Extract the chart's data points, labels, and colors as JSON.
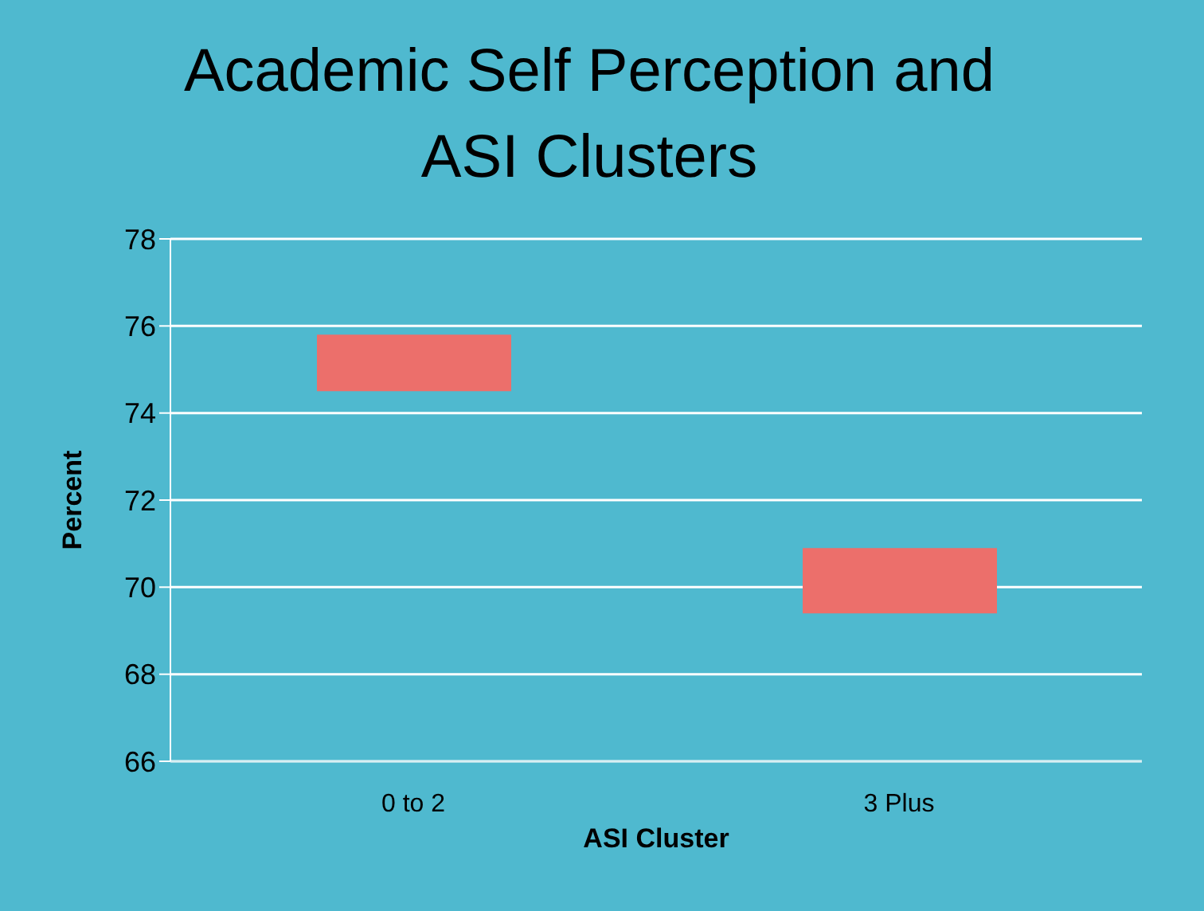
{
  "chart_data": {
    "type": "bar",
    "title": "Academic Self Perception and ASI Clusters",
    "xlabel": "ASI Cluster",
    "ylabel": "Percent",
    "categories": [
      "0 to 2",
      "3 Plus"
    ],
    "values": [
      1.3,
      1.5
    ],
    "base": [
      74.5,
      69.4
    ],
    "color": "#ec6f6b",
    "ylim": [
      66,
      78
    ],
    "yticks": [
      66,
      68,
      70,
      72,
      74,
      76,
      78
    ],
    "grid": "y"
  }
}
